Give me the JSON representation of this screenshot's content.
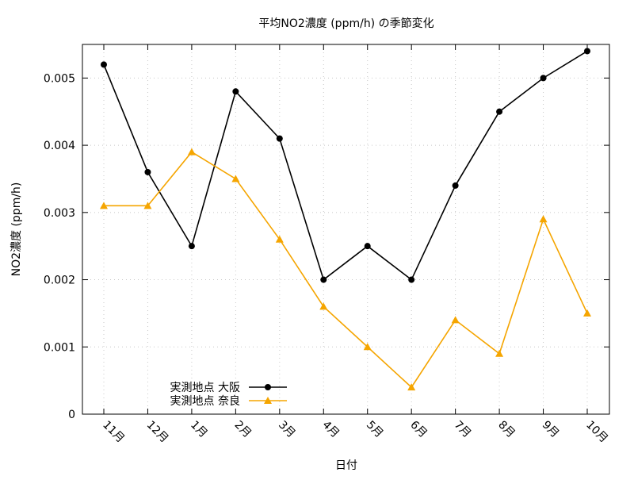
{
  "chart_data": {
    "type": "line",
    "title": "平均NO2濃度 (ppm/h) の季節変化",
    "xlabel": "日付",
    "ylabel": "NO2濃度 (ppm/h)",
    "categories": [
      "11月",
      "12月",
      "1月",
      "2月",
      "3月",
      "4月",
      "5月",
      "6月",
      "7月",
      "8月",
      "9月",
      "10月"
    ],
    "ylim": [
      0,
      0.0055
    ],
    "yticks": [
      0,
      0.001,
      0.002,
      0.003,
      0.004,
      0.005
    ],
    "ytick_labels": [
      "0",
      "0.001",
      "0.002",
      "0.003",
      "0.004",
      "0.005"
    ],
    "grid": true,
    "legend_position": "bottom-left",
    "series": [
      {
        "name": "実測地点 大阪",
        "color": "#000000",
        "marker": "circle",
        "values": [
          0.0052,
          0.0036,
          0.0025,
          0.0048,
          0.0041,
          0.002,
          0.0025,
          0.002,
          0.0034,
          0.0045,
          0.005,
          0.0054
        ]
      },
      {
        "name": "実測地点 奈良",
        "color": "#f5a500",
        "marker": "triangle",
        "values": [
          0.0031,
          0.0031,
          0.0039,
          0.0035,
          0.0026,
          0.0016,
          0.001,
          0.0004,
          0.0014,
          0.0009,
          0.0029,
          0.0015
        ]
      }
    ]
  }
}
